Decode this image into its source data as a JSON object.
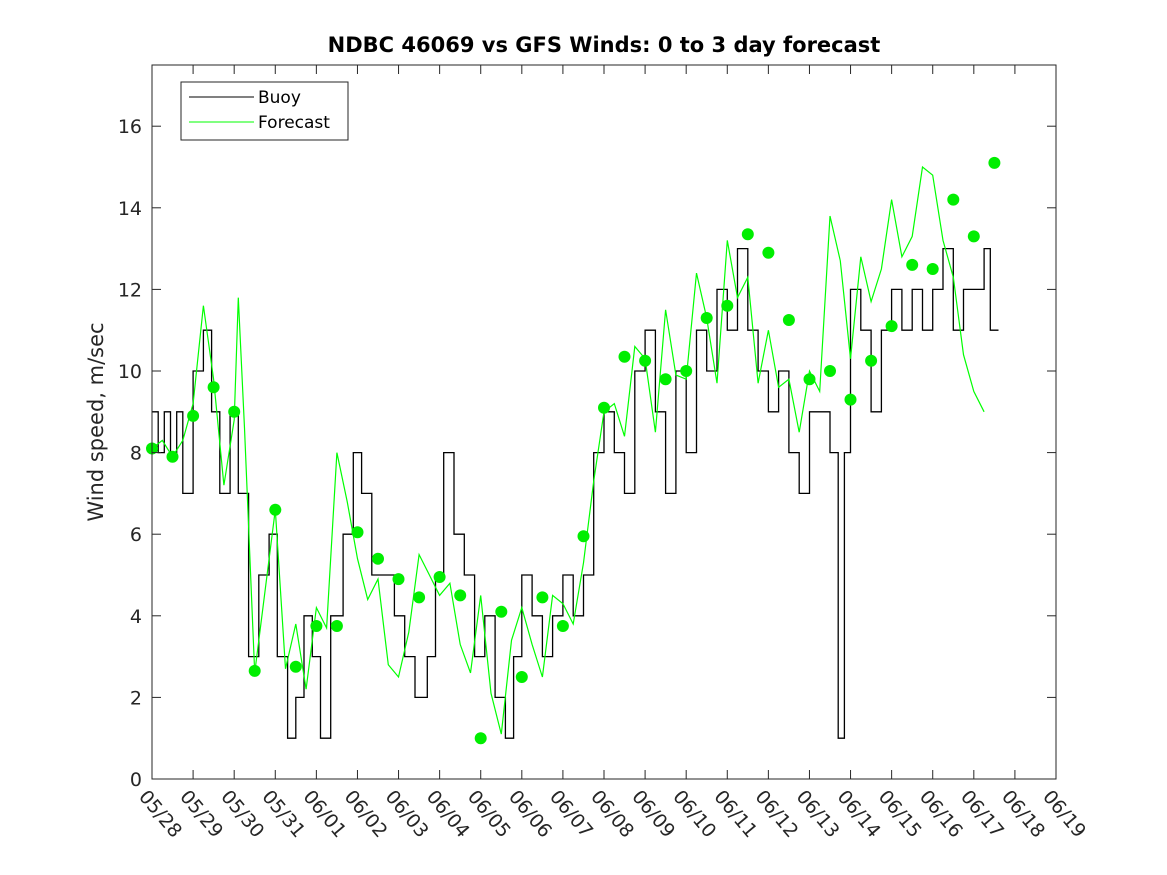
{
  "chart_data": {
    "type": "line",
    "title": "NDBC 46069 vs GFS Winds: 0 to 3 day forecast",
    "xlabel": "",
    "ylabel": "Wind speed, m/sec",
    "x_ticks": [
      "05/28",
      "05/29",
      "05/30",
      "05/31",
      "06/01",
      "06/02",
      "06/03",
      "06/04",
      "06/05",
      "06/06",
      "06/07",
      "06/08",
      "06/09",
      "06/10",
      "06/11",
      "06/12",
      "06/13",
      "06/14",
      "06/15",
      "06/16",
      "06/17",
      "06/18",
      "06/19"
    ],
    "xlim": [
      0,
      22
    ],
    "ylim": [
      0,
      17.5
    ],
    "y_ticks": [
      0,
      2,
      4,
      6,
      8,
      10,
      12,
      14,
      16
    ],
    "grid": false,
    "legend": {
      "position": "top-left",
      "entries": [
        "Buoy",
        "Forecast"
      ]
    },
    "colors": {
      "buoy": "#000000",
      "forecast": "#00ff00",
      "markers": "#00ee00"
    },
    "series": [
      {
        "name": "Buoy",
        "step": true,
        "points": [
          [
            0.0,
            9
          ],
          [
            0.15,
            8
          ],
          [
            0.3,
            9
          ],
          [
            0.45,
            8
          ],
          [
            0.6,
            9
          ],
          [
            0.75,
            7
          ],
          [
            1.0,
            10
          ],
          [
            1.25,
            11
          ],
          [
            1.45,
            9
          ],
          [
            1.65,
            7
          ],
          [
            1.9,
            9
          ],
          [
            2.1,
            7
          ],
          [
            2.35,
            3
          ],
          [
            2.6,
            5
          ],
          [
            2.85,
            6
          ],
          [
            3.05,
            3
          ],
          [
            3.3,
            1
          ],
          [
            3.5,
            2
          ],
          [
            3.7,
            4
          ],
          [
            3.9,
            3
          ],
          [
            4.1,
            1
          ],
          [
            4.35,
            4
          ],
          [
            4.65,
            6
          ],
          [
            4.9,
            8
          ],
          [
            5.1,
            7
          ],
          [
            5.35,
            5
          ],
          [
            5.6,
            5
          ],
          [
            5.9,
            4
          ],
          [
            6.15,
            3
          ],
          [
            6.4,
            2
          ],
          [
            6.7,
            3
          ],
          [
            6.9,
            5
          ],
          [
            7.1,
            8
          ],
          [
            7.35,
            6
          ],
          [
            7.6,
            5
          ],
          [
            7.85,
            3
          ],
          [
            8.1,
            4
          ],
          [
            8.35,
            2
          ],
          [
            8.6,
            1
          ],
          [
            8.8,
            3
          ],
          [
            9.0,
            5
          ],
          [
            9.25,
            4
          ],
          [
            9.5,
            3
          ],
          [
            9.75,
            4
          ],
          [
            10.0,
            5
          ],
          [
            10.25,
            4
          ],
          [
            10.5,
            5
          ],
          [
            10.75,
            8
          ],
          [
            11.0,
            9
          ],
          [
            11.25,
            8
          ],
          [
            11.5,
            7
          ],
          [
            11.75,
            10
          ],
          [
            12.0,
            11
          ],
          [
            12.25,
            9
          ],
          [
            12.5,
            7
          ],
          [
            12.75,
            10
          ],
          [
            13.0,
            8
          ],
          [
            13.25,
            11
          ],
          [
            13.5,
            10
          ],
          [
            13.75,
            12
          ],
          [
            14.0,
            11
          ],
          [
            14.25,
            13
          ],
          [
            14.5,
            11
          ],
          [
            14.75,
            10
          ],
          [
            15.0,
            9
          ],
          [
            15.25,
            10
          ],
          [
            15.5,
            8
          ],
          [
            15.75,
            7
          ],
          [
            16.0,
            9
          ],
          [
            16.25,
            9
          ],
          [
            16.5,
            8
          ],
          [
            16.7,
            1
          ],
          [
            16.85,
            8
          ],
          [
            17.0,
            12
          ],
          [
            17.25,
            11
          ],
          [
            17.5,
            9
          ],
          [
            17.75,
            11
          ],
          [
            18.0,
            12
          ],
          [
            18.25,
            11
          ],
          [
            18.5,
            12
          ],
          [
            18.75,
            11
          ],
          [
            19.0,
            12
          ],
          [
            19.25,
            13
          ],
          [
            19.5,
            11
          ],
          [
            19.75,
            12
          ],
          [
            20.0,
            12
          ],
          [
            20.25,
            13
          ],
          [
            20.4,
            11
          ]
        ]
      },
      {
        "name": "Forecast",
        "points": [
          [
            0.0,
            8.1
          ],
          [
            0.25,
            8.3
          ],
          [
            0.5,
            7.9
          ],
          [
            0.75,
            8.3
          ],
          [
            1.0,
            9.2
          ],
          [
            1.25,
            11.6
          ],
          [
            1.5,
            9.8
          ],
          [
            1.75,
            7.2
          ],
          [
            2.0,
            8.8
          ],
          [
            2.1,
            11.8
          ],
          [
            2.25,
            8.6
          ],
          [
            2.5,
            2.6
          ],
          [
            2.75,
            4.6
          ],
          [
            3.0,
            6.6
          ],
          [
            3.25,
            2.7
          ],
          [
            3.5,
            3.8
          ],
          [
            3.75,
            2.2
          ],
          [
            4.0,
            4.2
          ],
          [
            4.25,
            3.7
          ],
          [
            4.5,
            8.0
          ],
          [
            4.75,
            6.8
          ],
          [
            5.0,
            5.4
          ],
          [
            5.25,
            4.4
          ],
          [
            5.5,
            4.9
          ],
          [
            5.75,
            2.8
          ],
          [
            6.0,
            2.5
          ],
          [
            6.25,
            3.6
          ],
          [
            6.5,
            5.5
          ],
          [
            6.75,
            5.0
          ],
          [
            7.0,
            4.5
          ],
          [
            7.25,
            4.8
          ],
          [
            7.5,
            3.3
          ],
          [
            7.75,
            2.6
          ],
          [
            8.0,
            4.5
          ],
          [
            8.25,
            2.1
          ],
          [
            8.5,
            1.1
          ],
          [
            8.75,
            3.4
          ],
          [
            9.0,
            4.2
          ],
          [
            9.25,
            3.3
          ],
          [
            9.5,
            2.5
          ],
          [
            9.75,
            4.5
          ],
          [
            10.0,
            4.3
          ],
          [
            10.25,
            3.8
          ],
          [
            10.5,
            5.3
          ],
          [
            10.75,
            7.3
          ],
          [
            11.0,
            9.0
          ],
          [
            11.25,
            9.2
          ],
          [
            11.5,
            8.4
          ],
          [
            11.75,
            10.6
          ],
          [
            12.0,
            10.3
          ],
          [
            12.25,
            8.5
          ],
          [
            12.5,
            11.5
          ],
          [
            12.75,
            9.9
          ],
          [
            13.0,
            9.8
          ],
          [
            13.25,
            12.4
          ],
          [
            13.5,
            11.3
          ],
          [
            13.75,
            9.7
          ],
          [
            14.0,
            13.2
          ],
          [
            14.25,
            11.8
          ],
          [
            14.5,
            12.3
          ],
          [
            14.75,
            9.7
          ],
          [
            15.0,
            11.0
          ],
          [
            15.25,
            9.6
          ],
          [
            15.5,
            9.8
          ],
          [
            15.75,
            8.5
          ],
          [
            16.0,
            10.0
          ],
          [
            16.25,
            9.5
          ],
          [
            16.5,
            13.8
          ],
          [
            16.75,
            12.7
          ],
          [
            17.0,
            10.3
          ],
          [
            17.25,
            12.8
          ],
          [
            17.5,
            11.7
          ],
          [
            17.75,
            12.5
          ],
          [
            18.0,
            14.2
          ],
          [
            18.25,
            12.8
          ],
          [
            18.5,
            13.3
          ],
          [
            18.75,
            15.0
          ],
          [
            19.0,
            14.8
          ],
          [
            19.25,
            13.2
          ],
          [
            19.5,
            12.3
          ],
          [
            19.75,
            10.4
          ],
          [
            20.0,
            9.5
          ],
          [
            20.25,
            9.0
          ]
        ]
      },
      {
        "name": "",
        "markers_only": true,
        "points": [
          [
            0.0,
            8.1
          ],
          [
            0.5,
            7.9
          ],
          [
            1.0,
            8.9
          ],
          [
            1.5,
            9.6
          ],
          [
            2.0,
            9.0
          ],
          [
            2.5,
            2.65
          ],
          [
            3.0,
            6.6
          ],
          [
            3.5,
            2.75
          ],
          [
            4.0,
            3.75
          ],
          [
            4.5,
            3.75
          ],
          [
            5.0,
            6.05
          ],
          [
            5.5,
            5.4
          ],
          [
            6.0,
            4.9
          ],
          [
            6.5,
            4.45
          ],
          [
            7.0,
            4.95
          ],
          [
            7.5,
            4.5
          ],
          [
            8.0,
            1.0
          ],
          [
            8.5,
            4.1
          ],
          [
            9.0,
            2.5
          ],
          [
            9.5,
            4.45
          ],
          [
            10.0,
            3.75
          ],
          [
            10.5,
            5.95
          ],
          [
            11.0,
            9.1
          ],
          [
            11.5,
            10.35
          ],
          [
            12.0,
            10.25
          ],
          [
            12.5,
            9.8
          ],
          [
            13.0,
            10.0
          ],
          [
            13.5,
            11.3
          ],
          [
            14.0,
            11.6
          ],
          [
            14.5,
            13.35
          ],
          [
            15.0,
            12.9
          ],
          [
            15.5,
            11.25
          ],
          [
            16.0,
            9.8
          ],
          [
            16.5,
            10.0
          ],
          [
            17.0,
            9.3
          ],
          [
            17.5,
            10.25
          ],
          [
            18.0,
            11.1
          ],
          [
            18.5,
            12.6
          ],
          [
            19.0,
            12.5
          ],
          [
            19.5,
            14.2
          ],
          [
            20.0,
            13.3
          ],
          [
            20.5,
            15.1
          ]
        ]
      }
    ]
  }
}
